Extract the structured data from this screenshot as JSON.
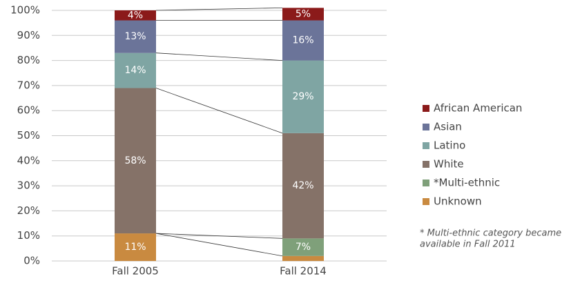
{
  "chart_data": {
    "type": "stacked_bar",
    "categories": [
      "Fall 2005",
      "Fall 2014"
    ],
    "series": [
      {
        "name": "Unknown",
        "color": "#c98a40",
        "values": [
          11,
          2
        ],
        "value_labels": [
          "11%",
          "2%"
        ]
      },
      {
        "name": "*Multi-ethnic",
        "color": "#7fa07a",
        "values": [
          0,
          7
        ],
        "value_labels": [
          "0%",
          "7%"
        ]
      },
      {
        "name": "White",
        "color": "#857268",
        "values": [
          58,
          42
        ],
        "value_labels": [
          "58%",
          "42%"
        ]
      },
      {
        "name": "Latino",
        "color": "#7fa5a3",
        "values": [
          14,
          29
        ],
        "value_labels": [
          "14%",
          "29%"
        ]
      },
      {
        "name": "Asian",
        "color": "#6b7499",
        "values": [
          13,
          16
        ],
        "value_labels": [
          "13%",
          "16%"
        ]
      },
      {
        "name": "African American",
        "color": "#8b1a1a",
        "values": [
          4,
          5
        ],
        "value_labels": [
          "4%",
          "5%"
        ]
      }
    ],
    "ylim": [
      0,
      100
    ],
    "yticks": [
      {
        "value": 0,
        "label": "0%"
      },
      {
        "value": 10,
        "label": "10%"
      },
      {
        "value": 20,
        "label": "20%"
      },
      {
        "value": 30,
        "label": "30%"
      },
      {
        "value": 40,
        "label": "40%"
      },
      {
        "value": 50,
        "label": "50%"
      },
      {
        "value": 60,
        "label": "60%"
      },
      {
        "value": 70,
        "label": "70%"
      },
      {
        "value": 80,
        "label": "80%"
      },
      {
        "value": 90,
        "label": "90%"
      },
      {
        "value": 100,
        "label": "100%"
      }
    ],
    "grid": true,
    "legend": "right",
    "note": [
      "* Multi-ethnic category became",
      "available in Fall 2011"
    ]
  }
}
